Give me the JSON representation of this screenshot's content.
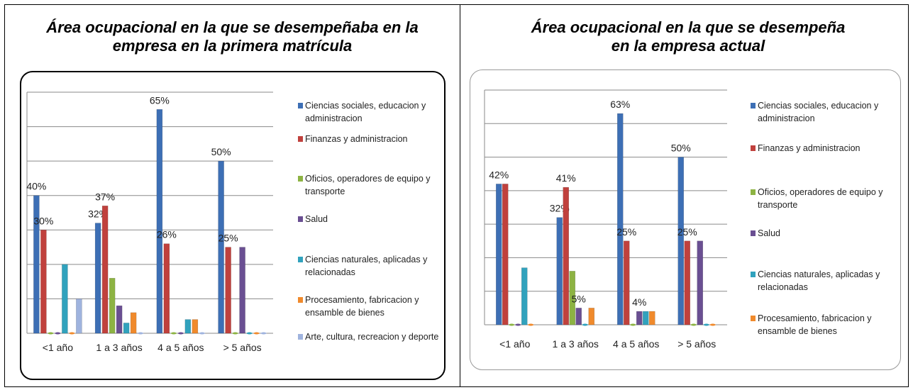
{
  "chart_data": [
    {
      "type": "bar",
      "title": "Área ocupacional en la que se desempeñaba en la empresa en la primera matrícula",
      "categories": [
        "<1 año",
        "1 a 3 años",
        "4 a  5 años",
        "> 5 años"
      ],
      "series": [
        {
          "name": "Ciencias sociales, educacion y administracion",
          "color": "#3d6fb5",
          "values": [
            40,
            32,
            65,
            50
          ],
          "value_labels": [
            "40%",
            "32%",
            "65%",
            "50%"
          ]
        },
        {
          "name": "Finanzas y administracion",
          "color": "#c0413d",
          "values": [
            30,
            37,
            26,
            25
          ],
          "value_labels": [
            "30%",
            "37%",
            "26%",
            "25%"
          ]
        },
        {
          "name": "Oficios, operadores de equipo y transporte",
          "color": "#8db343",
          "values": [
            0,
            16,
            0,
            0
          ]
        },
        {
          "name": "Salud",
          "color": "#6a4f92",
          "values": [
            0,
            8,
            0,
            25
          ]
        },
        {
          "name": "Ciencias naturales, aplicadas y relacionadas",
          "color": "#31a2bd",
          "values": [
            20,
            3,
            4,
            0
          ]
        },
        {
          "name": "Procesamiento, fabricacion y ensamble de bienes",
          "color": "#f08a2c",
          "values": [
            0,
            6,
            4,
            0
          ]
        },
        {
          "name": "Arte, cultura, recreacion y deporte",
          "color": "#9fb3de",
          "values": [
            10,
            0,
            0,
            0
          ]
        }
      ],
      "ylim": [
        0,
        70
      ],
      "yticks": [
        0,
        10,
        20,
        30,
        40,
        50,
        60,
        70
      ],
      "grid": true,
      "show_tick_labels": false,
      "legend": "right"
    },
    {
      "type": "bar",
      "title": "Área ocupacional en la que se desempeña en la empresa actual",
      "categories": [
        "<1 año",
        "1 a 3 años",
        "4 a  5 años",
        "> 5 años"
      ],
      "series": [
        {
          "name": "Ciencias sociales, educacion y administracion",
          "color": "#3d6fb5",
          "values": [
            42,
            32,
            63,
            50
          ],
          "value_labels": [
            "42%",
            "32%",
            "63%",
            "50%"
          ]
        },
        {
          "name": "Finanzas y administracion",
          "color": "#c0413d",
          "values": [
            42,
            41,
            25,
            25
          ],
          "value_labels": [
            null,
            "41%",
            "25%",
            "25%"
          ]
        },
        {
          "name": "Oficios, operadores de equipo y transporte",
          "color": "#8db343",
          "values": [
            0,
            16,
            0,
            0
          ]
        },
        {
          "name": "Salud",
          "color": "#6a4f92",
          "values": [
            0,
            5,
            4,
            25
          ],
          "value_labels": [
            null,
            "5%",
            "4%",
            null
          ]
        },
        {
          "name": "Ciencias naturales, aplicadas y relacionadas",
          "color": "#31a2bd",
          "values": [
            17,
            0,
            4,
            0
          ]
        },
        {
          "name": "Procesamiento, fabricacion y ensamble de bienes",
          "color": "#f08a2c",
          "values": [
            0,
            5,
            4,
            0
          ]
        }
      ],
      "ylim": [
        0,
        70
      ],
      "yticks": [
        0,
        10,
        20,
        30,
        40,
        50,
        60,
        70
      ],
      "grid": true,
      "show_tick_labels": false,
      "legend": "right"
    }
  ]
}
